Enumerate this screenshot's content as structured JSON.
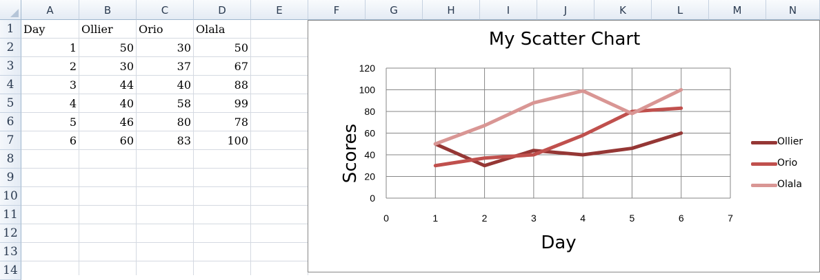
{
  "spreadsheet": {
    "columns": [
      "A",
      "B",
      "C",
      "D",
      "E",
      "F",
      "G",
      "H",
      "I",
      "J",
      "K",
      "L",
      "M",
      "N"
    ],
    "rows": [
      "1",
      "2",
      "3",
      "4",
      "5",
      "6",
      "7",
      "8",
      "9",
      "10",
      "11",
      "12",
      "13",
      "14"
    ],
    "header_row": [
      "Day",
      "Ollier",
      "Orio",
      "Olala"
    ],
    "data_rows": [
      [
        "1",
        "50",
        "30",
        "50"
      ],
      [
        "2",
        "30",
        "37",
        "67"
      ],
      [
        "3",
        "44",
        "40",
        "88"
      ],
      [
        "4",
        "40",
        "58",
        "99"
      ],
      [
        "5",
        "46",
        "80",
        "78"
      ],
      [
        "6",
        "60",
        "83",
        "100"
      ]
    ]
  },
  "chart_data": {
    "type": "scatter",
    "title": "My Scatter Chart",
    "xlabel": "Day",
    "ylabel": "Scores",
    "xlim": [
      0,
      7
    ],
    "ylim": [
      0,
      120
    ],
    "x_ticks": [
      "0",
      "1",
      "2",
      "3",
      "4",
      "5",
      "6",
      "7"
    ],
    "y_ticks": [
      "0",
      "20",
      "40",
      "60",
      "80",
      "100",
      "120"
    ],
    "grid": true,
    "legend_position": "right",
    "x": [
      1,
      2,
      3,
      4,
      5,
      6
    ],
    "series": [
      {
        "name": "Ollier",
        "values": [
          50,
          30,
          44,
          40,
          46,
          60
        ],
        "color": "#953735"
      },
      {
        "name": "Orio",
        "values": [
          30,
          37,
          40,
          58,
          80,
          83
        ],
        "color": "#c0504d"
      },
      {
        "name": "Olala",
        "values": [
          50,
          67,
          88,
          99,
          78,
          100
        ],
        "color": "#d99694"
      }
    ]
  }
}
